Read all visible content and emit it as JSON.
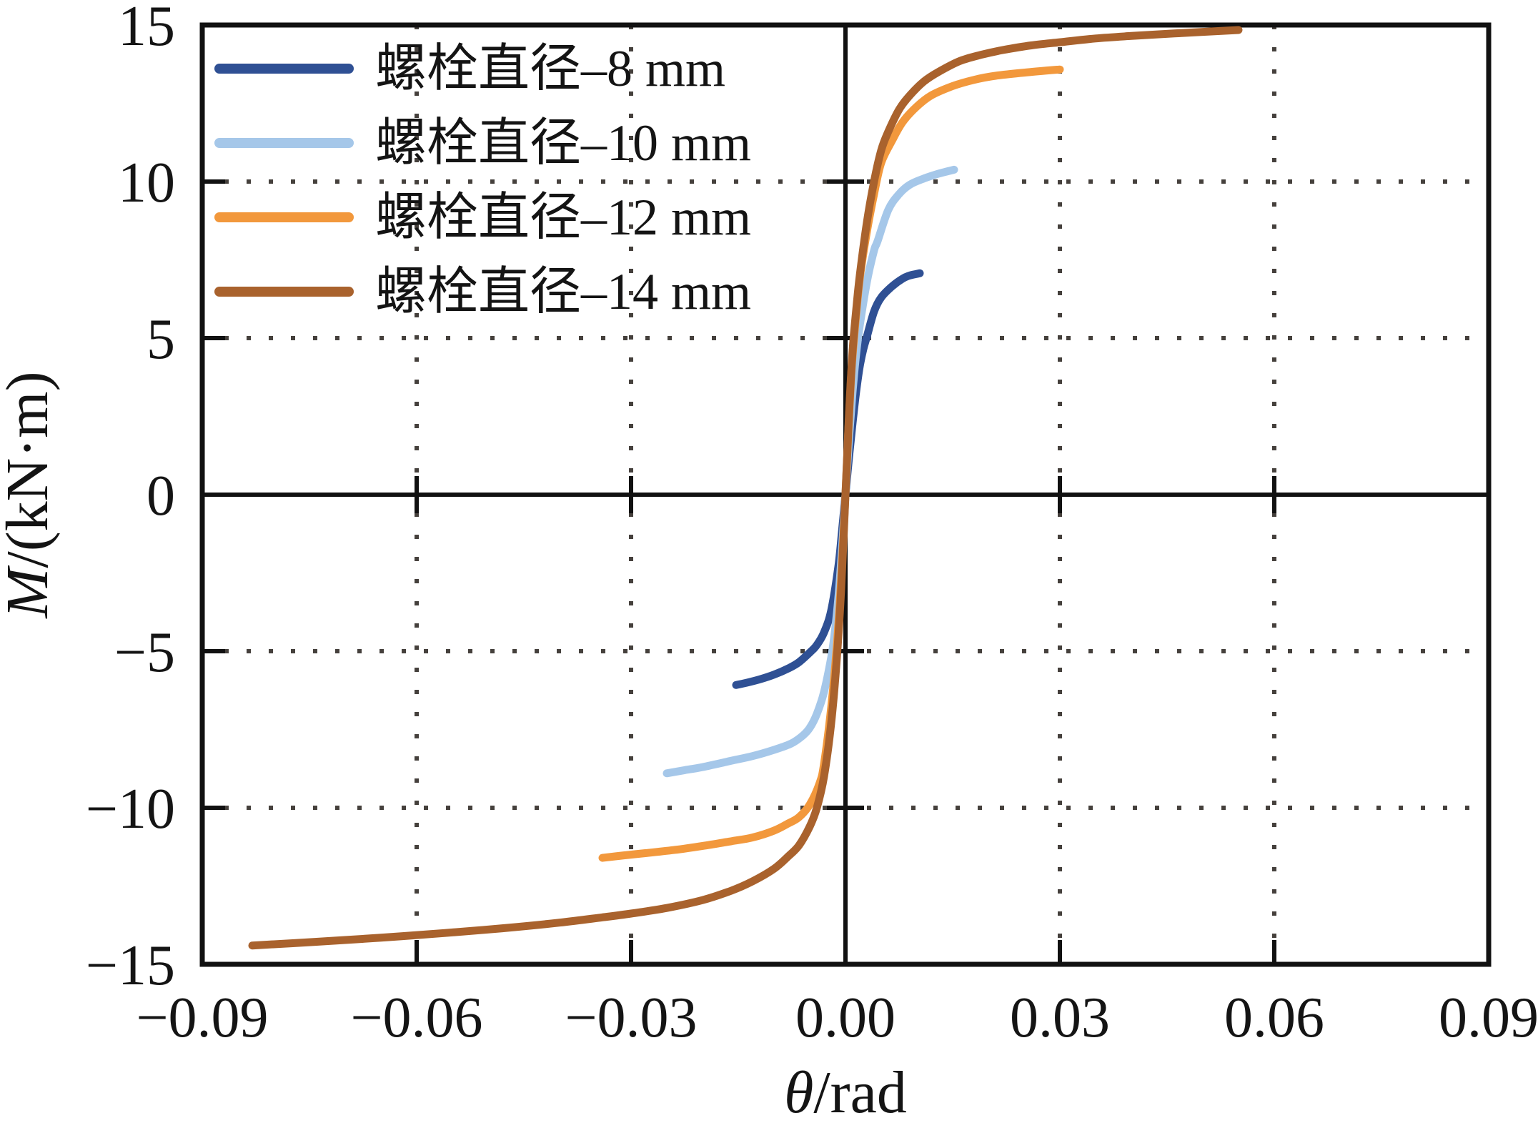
{
  "figure": {
    "background": "#ffffff",
    "text_color": "#141414",
    "axis_color": "#111111",
    "grid_color": "#45403c"
  },
  "chart_data": {
    "type": "line",
    "title": "",
    "xlabel": "θ/rad",
    "xlabel_parts": {
      "symbol": "θ",
      "rest": "/rad"
    },
    "ylabel": "M/(kN·m)",
    "ylabel_parts": {
      "symbol": "M",
      "rest": "/(kN·m)"
    },
    "xlim": [
      -0.09,
      0.09
    ],
    "ylim": [
      -15,
      15
    ],
    "x_ticks": [
      -0.09,
      -0.06,
      -0.03,
      0,
      0.03,
      0.06,
      0.09
    ],
    "x_tick_labels": [
      "−0.09",
      "−0.06",
      "−0.03",
      "0.00",
      "0.03",
      "0.06",
      "0.09"
    ],
    "y_ticks": [
      15,
      10,
      5,
      0,
      -5,
      -10,
      -15
    ],
    "y_tick_labels": [
      "15",
      "10",
      "5",
      "0",
      "−5",
      "−10",
      "−15"
    ],
    "grid": {
      "style": "dotted",
      "color": "#45403c",
      "x_lines": [
        -0.06,
        -0.03,
        0.03,
        0.06
      ],
      "y_lines": [
        -10,
        -5,
        5,
        10
      ]
    },
    "axes_through_origin": true,
    "axis_ticks": {
      "bottom_x": [
        -0.06,
        -0.03,
        0,
        0.03,
        0.06
      ],
      "left_y": [
        -10,
        -5,
        5,
        10
      ],
      "origin_x": [
        -0.06,
        -0.03,
        0.03,
        0.06
      ],
      "origin_y": [
        -10,
        -5,
        5,
        10
      ]
    },
    "legend_position": "upper-left",
    "series": [
      {
        "name": "螺栓直径–8 mm",
        "color": "#2f5094",
        "points": [
          [
            -0.0153,
            -6.08
          ],
          [
            -0.0137,
            -6.0
          ],
          [
            -0.012,
            -5.9
          ],
          [
            -0.01,
            -5.75
          ],
          [
            -0.008,
            -5.55
          ],
          [
            -0.0065,
            -5.35
          ],
          [
            -0.0048,
            -5.0
          ],
          [
            -0.004,
            -4.8
          ],
          [
            -0.003,
            -4.4
          ],
          [
            -0.002,
            -3.7
          ],
          [
            -0.001,
            -2.3
          ],
          [
            -0.0005,
            -1.2
          ],
          [
            0,
            0
          ],
          [
            0.0005,
            1.2
          ],
          [
            0.001,
            2.3
          ],
          [
            0.0015,
            3.3
          ],
          [
            0.002,
            4.1
          ],
          [
            0.0025,
            4.65
          ],
          [
            0.003,
            5.05
          ],
          [
            0.004,
            5.85
          ],
          [
            0.005,
            6.3
          ],
          [
            0.0065,
            6.65
          ],
          [
            0.008,
            6.9
          ],
          [
            0.009,
            7.0
          ],
          [
            0.0104,
            7.07
          ]
        ]
      },
      {
        "name": "螺栓直径–10 mm",
        "color": "#a5c7e9",
        "points": [
          [
            -0.025,
            -8.9
          ],
          [
            -0.0225,
            -8.8
          ],
          [
            -0.02,
            -8.7
          ],
          [
            -0.016,
            -8.5
          ],
          [
            -0.013,
            -8.35
          ],
          [
            -0.01,
            -8.15
          ],
          [
            -0.0076,
            -7.95
          ],
          [
            -0.006,
            -7.7
          ],
          [
            -0.005,
            -7.45
          ],
          [
            -0.004,
            -7.0
          ],
          [
            -0.003,
            -6.3
          ],
          [
            -0.002,
            -5.2
          ],
          [
            -0.0015,
            -4.4
          ],
          [
            -0.001,
            -3.3
          ],
          [
            -0.0005,
            -1.8
          ],
          [
            0,
            0
          ],
          [
            0.0005,
            1.8
          ],
          [
            0.001,
            3.3
          ],
          [
            0.0015,
            4.5
          ],
          [
            0.002,
            5.4
          ],
          [
            0.003,
            6.8
          ],
          [
            0.004,
            7.8
          ],
          [
            0.0045,
            8.1
          ],
          [
            0.006,
            9.1
          ],
          [
            0.0075,
            9.6
          ],
          [
            0.009,
            9.9
          ],
          [
            0.011,
            10.1
          ],
          [
            0.013,
            10.25
          ],
          [
            0.0152,
            10.38
          ]
        ]
      },
      {
        "name": "螺栓直径–12 mm",
        "color": "#f2983c",
        "points": [
          [
            -0.034,
            -11.6
          ],
          [
            -0.031,
            -11.52
          ],
          [
            -0.028,
            -11.45
          ],
          [
            -0.024,
            -11.35
          ],
          [
            -0.02,
            -11.22
          ],
          [
            -0.016,
            -11.07
          ],
          [
            -0.013,
            -10.95
          ],
          [
            -0.01,
            -10.73
          ],
          [
            -0.008,
            -10.5
          ],
          [
            -0.0065,
            -10.3
          ],
          [
            -0.005,
            -9.9
          ],
          [
            -0.0036,
            -9.2
          ],
          [
            -0.003,
            -8.6
          ],
          [
            -0.002,
            -6.8
          ],
          [
            -0.0012,
            -4.8
          ],
          [
            -0.0006,
            -2.7
          ],
          [
            0,
            0
          ],
          [
            0.0004,
            2.0
          ],
          [
            0.0008,
            3.8
          ],
          [
            0.0012,
            5.0
          ],
          [
            0.002,
            6.9
          ],
          [
            0.003,
            8.4
          ],
          [
            0.004,
            9.6
          ],
          [
            0.005,
            10.6
          ],
          [
            0.0065,
            11.3
          ],
          [
            0.008,
            11.9
          ],
          [
            0.01,
            12.4
          ],
          [
            0.012,
            12.75
          ],
          [
            0.015,
            13.05
          ],
          [
            0.018,
            13.25
          ],
          [
            0.021,
            13.38
          ],
          [
            0.025,
            13.48
          ],
          [
            0.03,
            13.58
          ]
        ]
      },
      {
        "name": "螺栓直径–14 mm",
        "color": "#a9622d",
        "points": [
          [
            -0.083,
            -14.4
          ],
          [
            -0.074,
            -14.28
          ],
          [
            -0.065,
            -14.15
          ],
          [
            -0.056,
            -14.0
          ],
          [
            -0.048,
            -13.85
          ],
          [
            -0.04,
            -13.67
          ],
          [
            -0.034,
            -13.5
          ],
          [
            -0.03,
            -13.38
          ],
          [
            -0.025,
            -13.2
          ],
          [
            -0.02,
            -12.95
          ],
          [
            -0.016,
            -12.65
          ],
          [
            -0.013,
            -12.35
          ],
          [
            -0.01,
            -11.95
          ],
          [
            -0.008,
            -11.55
          ],
          [
            -0.0065,
            -11.2
          ],
          [
            -0.005,
            -10.6
          ],
          [
            -0.004,
            -10.0
          ],
          [
            -0.003,
            -9.0
          ],
          [
            -0.002,
            -7.3
          ],
          [
            -0.0012,
            -5.2
          ],
          [
            -0.0006,
            -3.0
          ],
          [
            0,
            0
          ],
          [
            0.0005,
            2.6
          ],
          [
            0.001,
            4.6
          ],
          [
            0.0015,
            5.9
          ],
          [
            0.002,
            7.0
          ],
          [
            0.003,
            8.7
          ],
          [
            0.004,
            10.0
          ],
          [
            0.005,
            11.0
          ],
          [
            0.006,
            11.6
          ],
          [
            0.0075,
            12.3
          ],
          [
            0.009,
            12.75
          ],
          [
            0.011,
            13.2
          ],
          [
            0.013,
            13.5
          ],
          [
            0.016,
            13.85
          ],
          [
            0.019,
            14.05
          ],
          [
            0.022,
            14.2
          ],
          [
            0.026,
            14.35
          ],
          [
            0.03,
            14.45
          ],
          [
            0.035,
            14.57
          ],
          [
            0.04,
            14.65
          ],
          [
            0.046,
            14.73
          ],
          [
            0.055,
            14.84
          ]
        ]
      }
    ]
  }
}
